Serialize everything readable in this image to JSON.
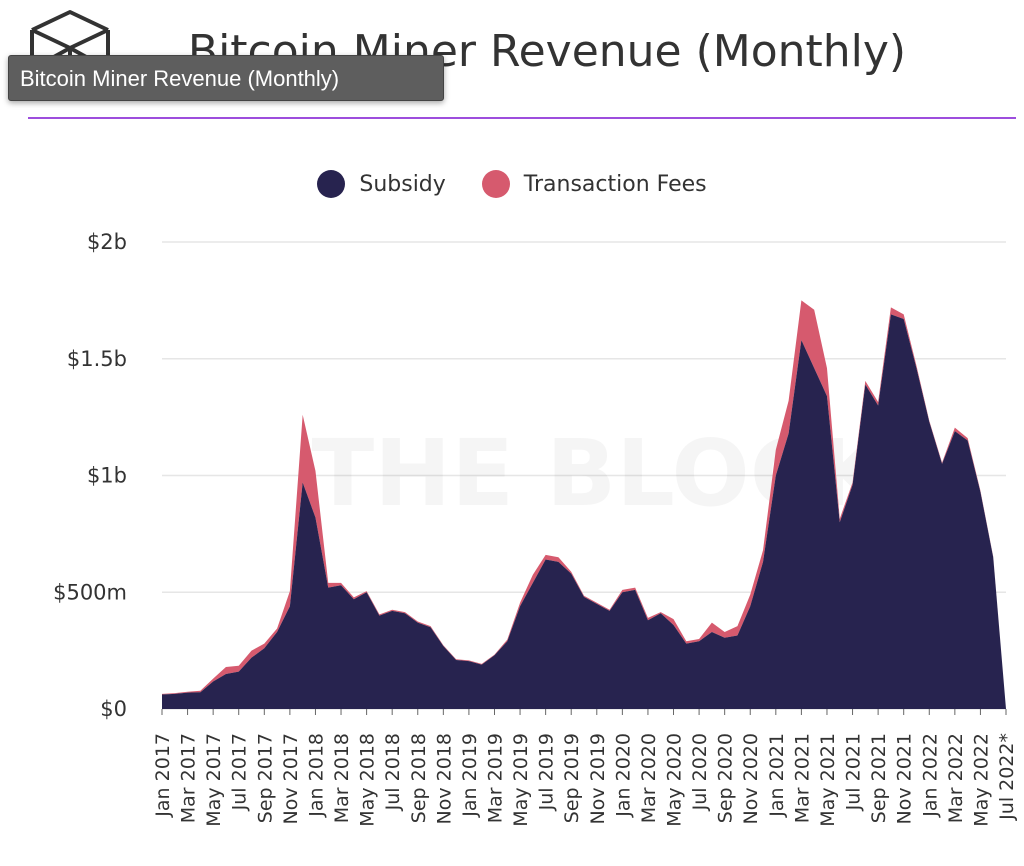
{
  "page": {
    "title": "Bitcoin Miner Revenue (Monthly)",
    "tooltip": "Bitcoin Miner Revenue (Monthly)",
    "watermark": "THE BLOCK",
    "colors": {
      "accent": "#9d4edd",
      "subsidy": "#27234f",
      "fees": "#d65a6e"
    },
    "icons": {
      "logo": "cube-logo-icon"
    }
  },
  "chart_data": {
    "type": "area",
    "stacked": true,
    "title": "Bitcoin Miner Revenue (Monthly)",
    "xlabel": "",
    "ylabel": "",
    "ylim": [
      0,
      2000000000
    ],
    "y_tick_values": [
      0,
      500000000,
      1000000000,
      1500000000,
      2000000000
    ],
    "y_tick_labels": [
      "$0",
      "$500m",
      "$1b",
      "$1.5b",
      "$2b"
    ],
    "grid": true,
    "legend_position": "top-center",
    "x": [
      "2017-01",
      "2017-02",
      "2017-03",
      "2017-04",
      "2017-05",
      "2017-06",
      "2017-07",
      "2017-08",
      "2017-09",
      "2017-10",
      "2017-11",
      "2017-12",
      "2018-01",
      "2018-02",
      "2018-03",
      "2018-04",
      "2018-05",
      "2018-06",
      "2018-07",
      "2018-08",
      "2018-09",
      "2018-10",
      "2018-11",
      "2018-12",
      "2019-01",
      "2019-02",
      "2019-03",
      "2019-04",
      "2019-05",
      "2019-06",
      "2019-07",
      "2019-08",
      "2019-09",
      "2019-10",
      "2019-11",
      "2019-12",
      "2020-01",
      "2020-02",
      "2020-03",
      "2020-04",
      "2020-05",
      "2020-06",
      "2020-07",
      "2020-08",
      "2020-09",
      "2020-10",
      "2020-11",
      "2020-12",
      "2021-01",
      "2021-02",
      "2021-03",
      "2021-04",
      "2021-05",
      "2021-06",
      "2021-07",
      "2021-08",
      "2021-09",
      "2021-10",
      "2021-11",
      "2021-12",
      "2022-01",
      "2022-02",
      "2022-03",
      "2022-04",
      "2022-05",
      "2022-06",
      "2022-07"
    ],
    "x_tick_labels": [
      "Jan 2017",
      "Mar 2017",
      "May 2017",
      "Jul 2017",
      "Sep 2017",
      "Nov 2017",
      "Jan 2018",
      "Mar 2018",
      "May 2018",
      "Jul 2018",
      "Sep 2018",
      "Nov 2018",
      "Jan 2019",
      "Mar 2019",
      "May 2019",
      "Jul 2019",
      "Sep 2019",
      "Nov 2019",
      "Jan 2020",
      "Mar 2020",
      "May 2020",
      "Jul 2020",
      "Sep 2020",
      "Nov 2020",
      "Jan 2021",
      "Mar 2021",
      "May 2021",
      "Jul 2021",
      "Sep 2021",
      "Nov 2021",
      "Jan 2022",
      "Mar 2022",
      "May 2022",
      "Jul 2022*"
    ],
    "series": [
      {
        "name": "Subsidy",
        "color": "#27234f",
        "values": [
          62000000,
          65000000,
          70000000,
          72000000,
          118000000,
          150000000,
          160000000,
          220000000,
          260000000,
          330000000,
          440000000,
          970000000,
          820000000,
          520000000,
          530000000,
          470000000,
          500000000,
          400000000,
          420000000,
          410000000,
          370000000,
          350000000,
          270000000,
          210000000,
          205000000,
          190000000,
          230000000,
          290000000,
          440000000,
          540000000,
          640000000,
          630000000,
          580000000,
          480000000,
          450000000,
          420000000,
          500000000,
          510000000,
          380000000,
          410000000,
          360000000,
          280000000,
          290000000,
          330000000,
          305000000,
          315000000,
          440000000,
          630000000,
          1000000000,
          1180000000,
          1580000000,
          1460000000,
          1340000000,
          800000000,
          960000000,
          1390000000,
          1300000000,
          1690000000,
          1670000000,
          1460000000,
          1230000000,
          1050000000,
          1190000000,
          1150000000,
          930000000,
          650000000,
          0
        ]
      },
      {
        "name": "Transaction Fees",
        "color": "#d65a6e",
        "values": [
          3000000,
          3000000,
          4000000,
          6000000,
          12000000,
          30000000,
          25000000,
          30000000,
          20000000,
          15000000,
          65000000,
          290000000,
          200000000,
          20000000,
          10000000,
          8000000,
          5000000,
          5000000,
          5000000,
          5000000,
          5000000,
          5000000,
          3000000,
          3000000,
          3000000,
          3000000,
          3000000,
          7000000,
          15000000,
          35000000,
          20000000,
          20000000,
          8000000,
          5000000,
          5000000,
          5000000,
          10000000,
          10000000,
          10000000,
          5000000,
          25000000,
          10000000,
          10000000,
          40000000,
          25000000,
          40000000,
          50000000,
          50000000,
          110000000,
          140000000,
          170000000,
          250000000,
          120000000,
          15000000,
          10000000,
          15000000,
          15000000,
          30000000,
          20000000,
          10000000,
          5000000,
          5000000,
          15000000,
          10000000,
          5000000,
          3000000,
          0
        ]
      }
    ]
  }
}
